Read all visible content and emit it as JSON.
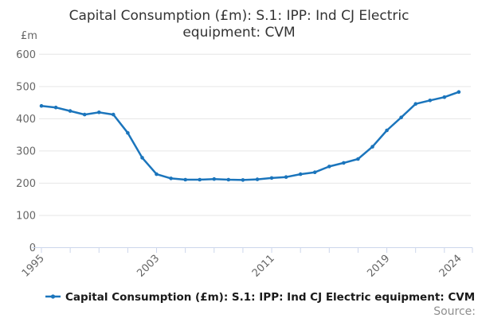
{
  "title": {
    "full": "Capital Consumption (£m): S.1: IPP: Ind CJ Electric equipment: CVM",
    "lines": [
      "Capital Consumption (£m): S.1: IPP: Ind CJ Electric",
      "equipment: CVM"
    ]
  },
  "y_axis": {
    "unit": "£m"
  },
  "legend": {
    "label": "Capital Consumption (£m): S.1: IPP: Ind CJ Electric equipment: CVM"
  },
  "source": {
    "label": "Source:"
  },
  "colors": {
    "line": "#1b75bc",
    "grid": "#e6e6e6",
    "axis": "#ccd6eb",
    "tick_text": "#666666",
    "title_text": "#333333",
    "legend_text": "#1a1a1a",
    "source_text": "#8f8f8f"
  },
  "chart_data": {
    "type": "line",
    "title": "Capital Consumption (£m): S.1: IPP: Ind CJ Electric equipment: CVM",
    "xlabel": "",
    "ylabel": "£m",
    "ylim": [
      0,
      600
    ],
    "y_ticks": [
      0,
      100,
      200,
      300,
      400,
      500,
      600
    ],
    "x_tick_labels": [
      "1995",
      "2003",
      "2011",
      "2019",
      "2024"
    ],
    "minor_tick_every_years": 2,
    "grid": true,
    "legend_position": "bottom",
    "marker": "circle",
    "x": [
      1995,
      1996,
      1997,
      1998,
      1999,
      2000,
      2001,
      2002,
      2003,
      2004,
      2005,
      2006,
      2007,
      2008,
      2009,
      2010,
      2011,
      2012,
      2013,
      2014,
      2015,
      2016,
      2017,
      2018,
      2019,
      2020,
      2021,
      2022,
      2023,
      2024
    ],
    "series": [
      {
        "name": "Capital Consumption (£m): S.1: IPP: Ind CJ Electric equipment: CVM",
        "values": [
          440,
          435,
          424,
          413,
          420,
          413,
          356,
          279,
          228,
          215,
          211,
          211,
          213,
          211,
          210,
          212,
          216,
          219,
          228,
          234,
          252,
          263,
          275,
          313,
          364,
          404,
          446,
          457,
          467,
          483
        ]
      }
    ]
  }
}
